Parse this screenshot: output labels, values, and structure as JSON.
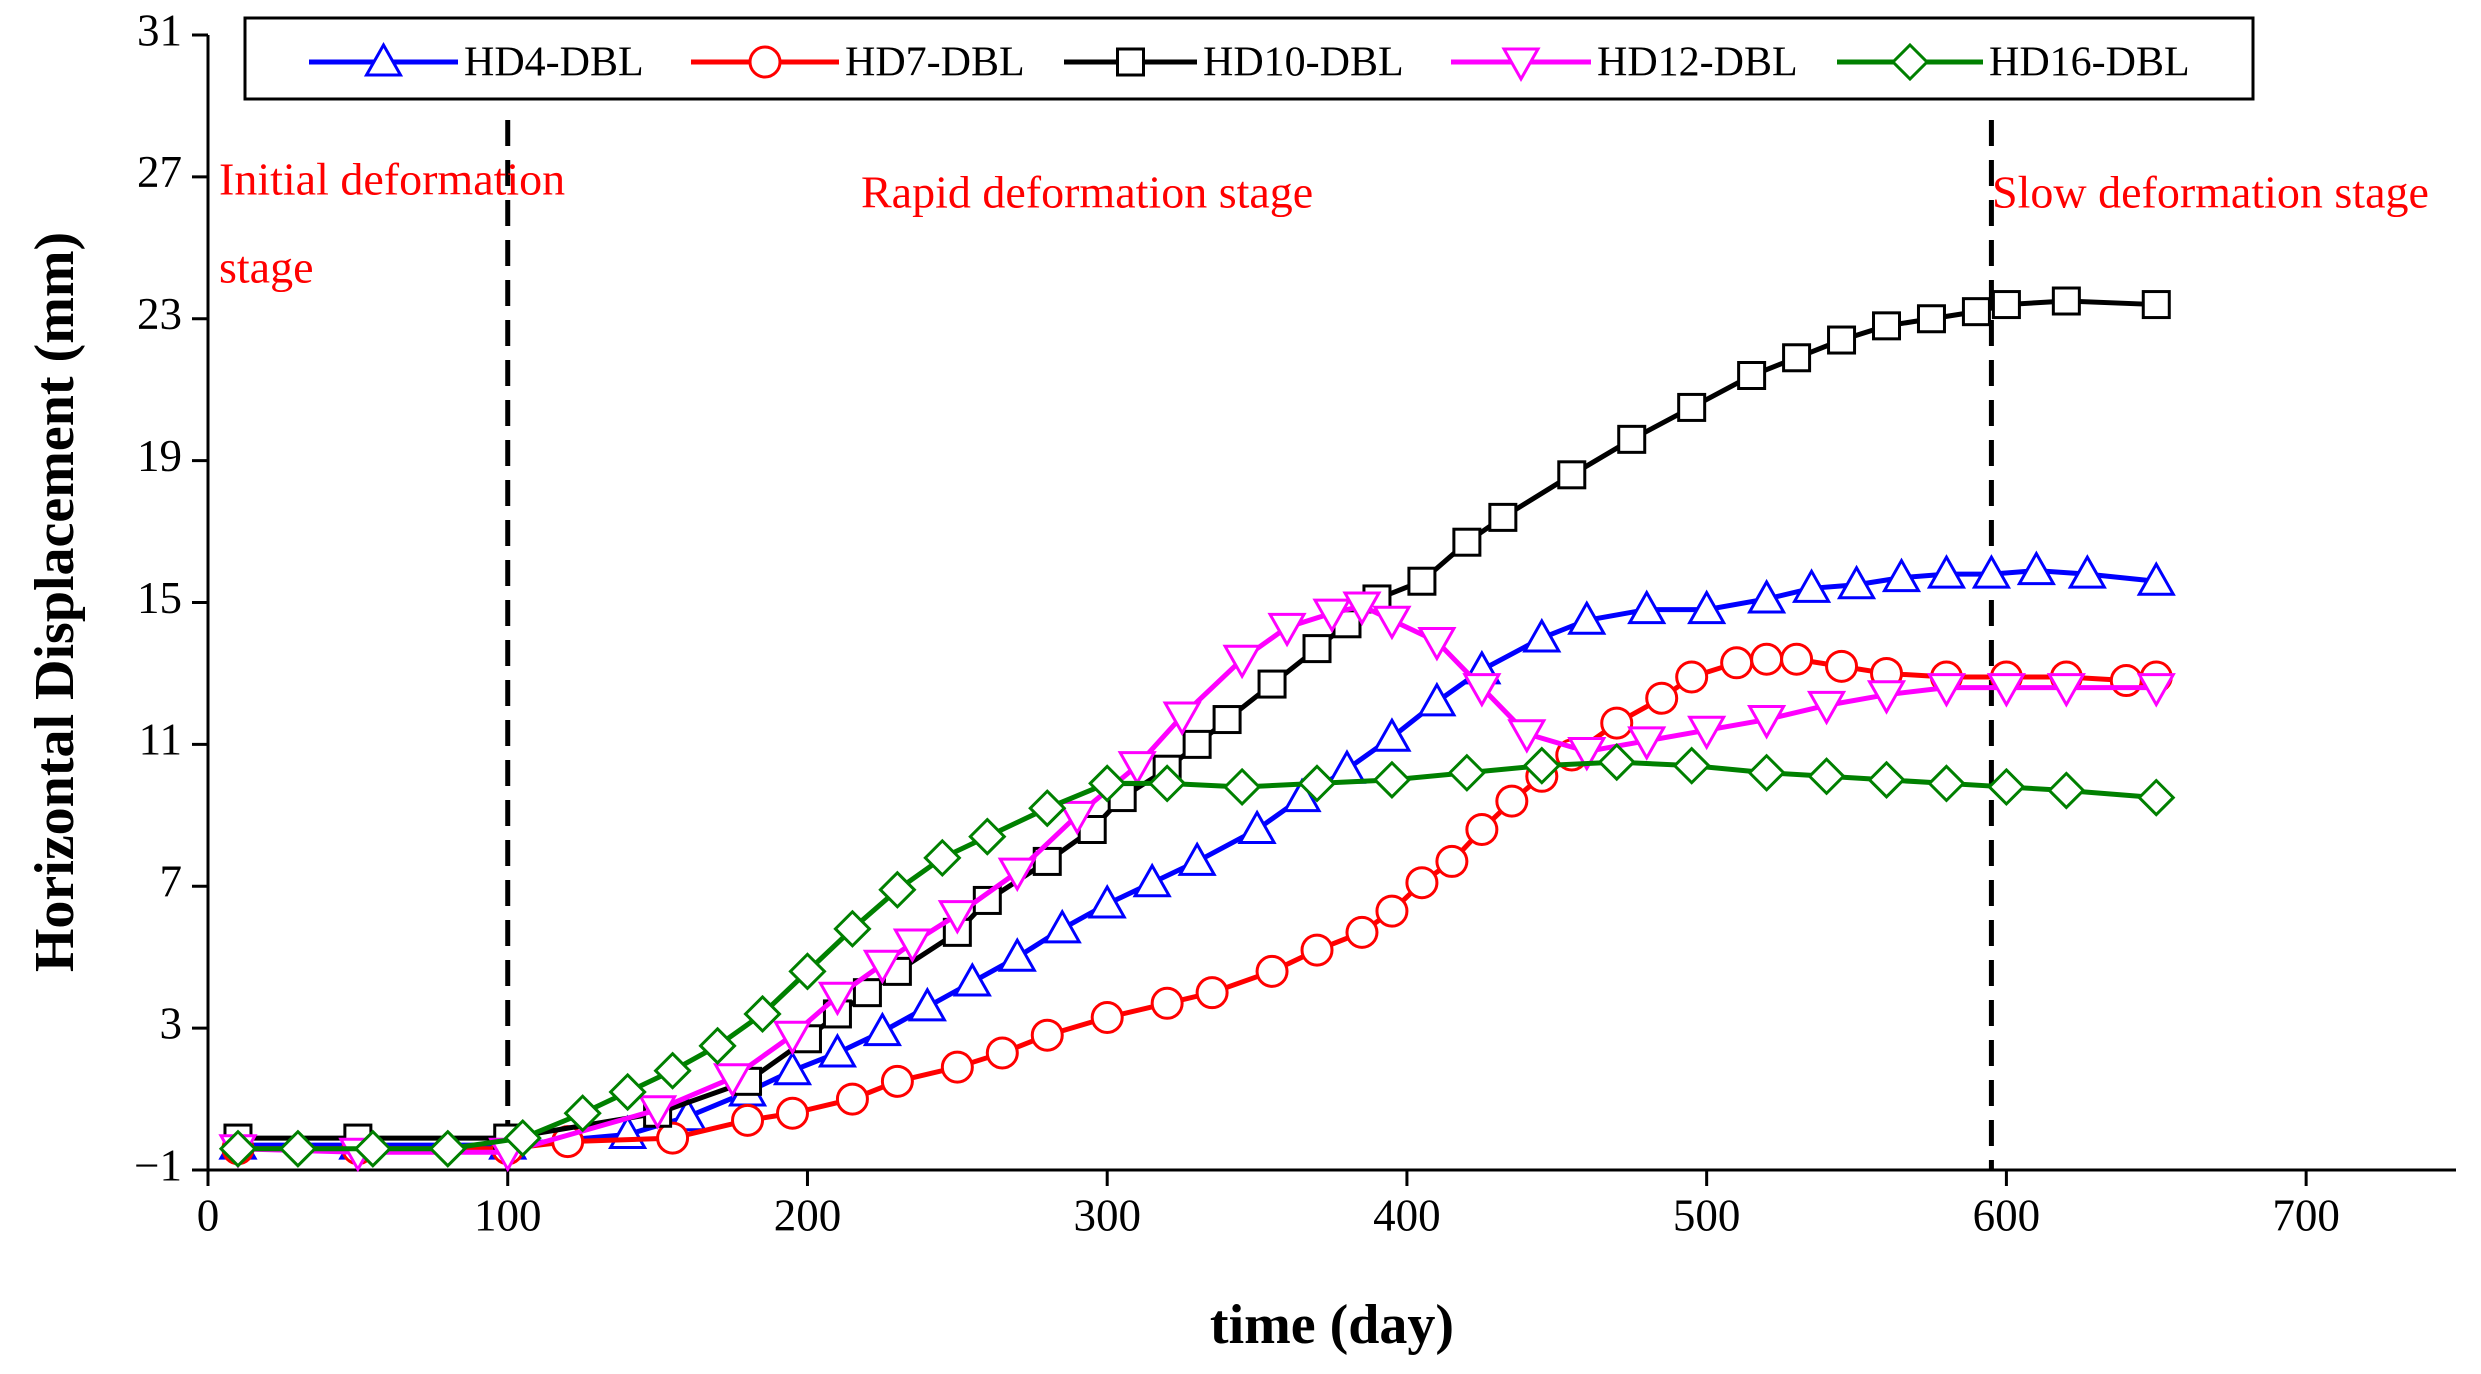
{
  "chart_data": {
    "type": "line",
    "x_label": "time (day)",
    "y_label": "Horizontal Displacement (mm)",
    "xlim": [
      0,
      750
    ],
    "xticks": [
      0,
      100,
      200,
      300,
      400,
      500,
      600,
      700
    ],
    "ylim": [
      -1,
      31
    ],
    "yticks": [
      {
        "value": -1,
        "label": "−1"
      },
      3,
      7,
      11,
      15,
      19,
      23,
      27,
      31
    ],
    "grid": false,
    "stage_boundaries": [
      100,
      595
    ],
    "annotations": [
      "Initial deformation",
      "stage",
      "Rapid deformation stage",
      "Slow deformation stage"
    ],
    "annotation_color": "#ff0000",
    "series": [
      {
        "name": "HD4-DBL",
        "color": "#0000ff",
        "marker": "triangle-up",
        "x": [
          10,
          50,
          100,
          140,
          160,
          180,
          195,
          210,
          225,
          240,
          255,
          270,
          285,
          300,
          315,
          330,
          350,
          365,
          380,
          395,
          410,
          425,
          445,
          460,
          480,
          500,
          520,
          535,
          550,
          565,
          580,
          595,
          610,
          627,
          650
        ],
        "values": [
          -0.3,
          -0.3,
          -0.3,
          0.0,
          0.5,
          1.2,
          1.8,
          2.3,
          2.9,
          3.6,
          4.3,
          5.0,
          5.8,
          6.5,
          7.1,
          7.7,
          8.6,
          9.5,
          10.3,
          11.2,
          12.2,
          13.1,
          14.0,
          14.5,
          14.8,
          14.8,
          15.1,
          15.4,
          15.5,
          15.7,
          15.8,
          15.8,
          15.9,
          15.8,
          15.6
        ]
      },
      {
        "name": "HD7-DBL",
        "color": "#ff0000",
        "marker": "circle",
        "x": [
          10,
          50,
          100,
          120,
          155,
          180,
          195,
          215,
          230,
          250,
          265,
          280,
          300,
          320,
          335,
          355,
          370,
          385,
          395,
          405,
          415,
          425,
          435,
          445,
          455,
          470,
          485,
          495,
          510,
          520,
          530,
          545,
          560,
          580,
          600,
          620,
          640,
          650
        ],
        "values": [
          -0.4,
          -0.4,
          -0.4,
          -0.2,
          -0.1,
          0.4,
          0.6,
          1.0,
          1.5,
          1.9,
          2.3,
          2.8,
          3.3,
          3.7,
          4.0,
          4.6,
          5.2,
          5.7,
          6.3,
          7.1,
          7.7,
          8.6,
          9.4,
          10.1,
          10.7,
          11.6,
          12.3,
          12.9,
          13.3,
          13.4,
          13.4,
          13.2,
          13.0,
          12.9,
          12.9,
          12.9,
          12.8,
          12.9
        ]
      },
      {
        "name": "HD10-DBL",
        "color": "#000000",
        "marker": "square",
        "x": [
          10,
          50,
          100,
          150,
          180,
          200,
          210,
          220,
          230,
          250,
          260,
          280,
          295,
          305,
          320,
          330,
          340,
          355,
          370,
          380,
          390,
          405,
          420,
          432,
          455,
          475,
          495,
          515,
          530,
          545,
          560,
          575,
          590,
          600,
          620,
          650
        ],
        "values": [
          -0.1,
          -0.1,
          -0.1,
          0.6,
          1.5,
          2.7,
          3.4,
          4.0,
          4.6,
          5.7,
          6.6,
          7.7,
          8.6,
          9.5,
          10.3,
          11.0,
          11.7,
          12.7,
          13.7,
          14.4,
          15.1,
          15.6,
          16.7,
          17.4,
          18.6,
          19.6,
          20.5,
          21.4,
          21.9,
          22.4,
          22.8,
          23.0,
          23.2,
          23.4,
          23.5,
          23.4
        ]
      },
      {
        "name": "HD12-DBL",
        "color": "#ff00ff",
        "marker": "triangle-down",
        "x": [
          10,
          50,
          100,
          150,
          175,
          195,
          210,
          225,
          235,
          250,
          270,
          290,
          310,
          325,
          345,
          360,
          375,
          385,
          395,
          410,
          425,
          440,
          460,
          480,
          500,
          520,
          540,
          560,
          580,
          600,
          620,
          650
        ],
        "values": [
          -0.4,
          -0.5,
          -0.5,
          0.7,
          1.6,
          2.8,
          3.9,
          4.8,
          5.4,
          6.2,
          7.4,
          9.0,
          10.4,
          11.8,
          13.4,
          14.3,
          14.7,
          14.9,
          14.5,
          13.9,
          12.6,
          11.3,
          10.8,
          11.1,
          11.4,
          11.7,
          12.1,
          12.4,
          12.6,
          12.6,
          12.6,
          12.6
        ]
      },
      {
        "name": "HD16-DBL",
        "color": "#008000",
        "marker": "diamond",
        "x": [
          10,
          30,
          55,
          80,
          105,
          125,
          140,
          155,
          170,
          185,
          200,
          215,
          230,
          245,
          260,
          280,
          300,
          320,
          345,
          370,
          395,
          420,
          445,
          470,
          495,
          520,
          540,
          560,
          580,
          600,
          620,
          650
        ],
        "values": [
          -0.4,
          -0.4,
          -0.4,
          -0.4,
          -0.1,
          0.6,
          1.2,
          1.8,
          2.5,
          3.4,
          4.6,
          5.8,
          6.9,
          7.8,
          8.4,
          9.2,
          9.9,
          9.9,
          9.8,
          9.9,
          10.0,
          10.2,
          10.4,
          10.5,
          10.4,
          10.2,
          10.1,
          10.0,
          9.9,
          9.8,
          9.7,
          9.5
        ]
      }
    ]
  }
}
